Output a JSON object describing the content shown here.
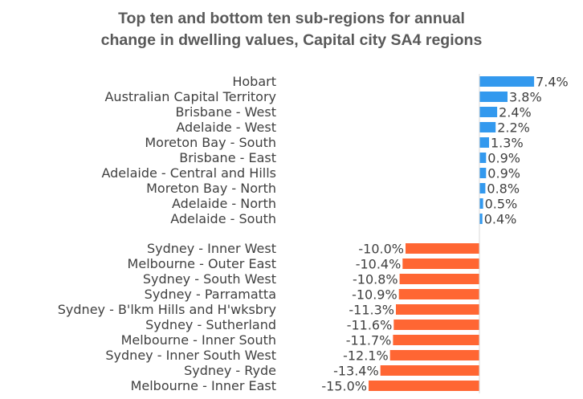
{
  "chart_data": {
    "type": "bar",
    "orientation": "horizontal",
    "title_line1": "Top ten and bottom ten sub-regions for annual",
    "title_line2": "change in dwelling values, Capital city SA4 regions",
    "unit": "%",
    "positive_color": "#3399EE",
    "negative_color": "#FF6633",
    "top_ten": [
      {
        "label": "Hobart",
        "value": 7.4,
        "display": "7.4%"
      },
      {
        "label": "Australian Capital Territory",
        "value": 3.8,
        "display": "3.8%"
      },
      {
        "label": "Brisbane - West",
        "value": 2.4,
        "display": "2.4%"
      },
      {
        "label": "Adelaide - West",
        "value": 2.2,
        "display": "2.2%"
      },
      {
        "label": "Moreton Bay - South",
        "value": 1.3,
        "display": "1.3%"
      },
      {
        "label": "Brisbane - East",
        "value": 0.9,
        "display": "0.9%"
      },
      {
        "label": "Adelaide - Central and Hills",
        "value": 0.9,
        "display": "0.9%"
      },
      {
        "label": "Moreton Bay - North",
        "value": 0.8,
        "display": "0.8%"
      },
      {
        "label": "Adelaide - North",
        "value": 0.5,
        "display": "0.5%"
      },
      {
        "label": "Adelaide - South",
        "value": 0.4,
        "display": "0.4%"
      }
    ],
    "bottom_ten": [
      {
        "label": "Sydney - Inner West",
        "value": -10.0,
        "display": "-10.0%"
      },
      {
        "label": "Melbourne - Outer East",
        "value": -10.4,
        "display": "-10.4%"
      },
      {
        "label": "Sydney - South West",
        "value": -10.8,
        "display": "-10.8%"
      },
      {
        "label": "Sydney - Parramatta",
        "value": -10.9,
        "display": "-10.9%"
      },
      {
        "label": "Sydney - B'lkm Hills and H'wksbry",
        "value": -11.3,
        "display": "-11.3%"
      },
      {
        "label": "Sydney - Sutherland",
        "value": -11.6,
        "display": "-11.6%"
      },
      {
        "label": "Melbourne - Inner South",
        "value": -11.7,
        "display": "-11.7%"
      },
      {
        "label": "Sydney - Inner South West",
        "value": -12.1,
        "display": "-12.1%"
      },
      {
        "label": "Sydney - Ryde",
        "value": -13.4,
        "display": "-13.4%"
      },
      {
        "label": "Melbourne - Inner East",
        "value": -15.0,
        "display": "-15.0%"
      }
    ]
  }
}
